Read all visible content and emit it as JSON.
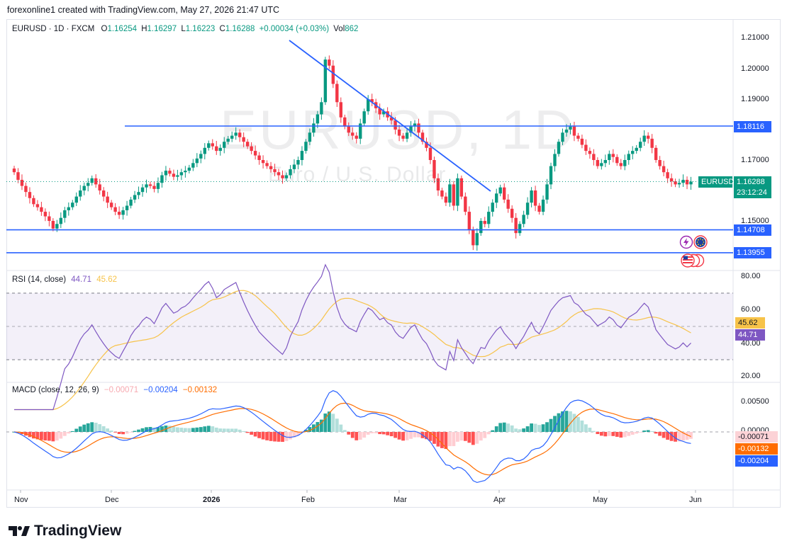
{
  "header": {
    "text": "forexonline1 created with TradingView.com, May 27, 2026 21:47 UTC"
  },
  "legend": {
    "symbol": "EURUSD · 1D · FXCM",
    "o_label": "O",
    "o_value": "1.16254",
    "h_label": "H",
    "h_value": "1.16297",
    "l_label": "L",
    "l_value": "1.16223",
    "c_label": "C",
    "c_value": "1.16288",
    "change": "+0.00034 (+0.03%)",
    "vol_label": "Vol",
    "vol_value": "862"
  },
  "watermark": {
    "title": "EURUSD, 1D",
    "subtitle": "Euro / U.S. Dollar"
  },
  "colors": {
    "up": "#089981",
    "down": "#f23645",
    "line": "#2962ff",
    "rsi": "#7e57c2",
    "rsi_ma": "#f7c34a",
    "macd": "#2962ff",
    "signal": "#ff6d00"
  },
  "price_axis": {
    "ticks": [
      "1.21000",
      "1.20000",
      "1.19000",
      "1.17000",
      "1.15000"
    ],
    "tick_values": [
      1.21,
      1.2,
      1.19,
      1.17,
      1.15
    ],
    "levels": [
      {
        "label": "1.18116",
        "value": 1.18116
      },
      {
        "label": "1.14708",
        "value": 1.14708
      },
      {
        "label": "1.13955",
        "value": 1.13955
      }
    ],
    "current": {
      "symbol": "EURUSD",
      "price": "1.16288",
      "countdown": "23:12:24"
    }
  },
  "rsi": {
    "legend": "RSI (14, close)",
    "value": "44.71",
    "ma_value": "45.62",
    "ticks": [
      "80.00",
      "60.00",
      "40.00",
      "20.00"
    ],
    "tick_values": [
      80,
      60,
      40,
      20
    ]
  },
  "macd": {
    "legend": "MACD (close, 12, 26, 9)",
    "hist_value": "−0.00071",
    "macd_value": "−0.00204",
    "signal_value": "−0.00132",
    "ticks": [
      "0.00500",
      "0.00000"
    ],
    "tick_values": [
      0.005,
      0.0
    ],
    "hist_tag": "-0.00071",
    "signal_tag": "-0.00132",
    "macd_tag": "-0.00204"
  },
  "time_axis": {
    "labels": [
      {
        "text": "Nov",
        "bold": false
      },
      {
        "text": "Dec",
        "bold": false
      },
      {
        "text": "2026",
        "bold": true
      },
      {
        "text": "Feb",
        "bold": false
      },
      {
        "text": "Mar",
        "bold": false
      },
      {
        "text": "Apr",
        "bold": false
      },
      {
        "text": "May",
        "bold": false
      },
      {
        "text": "Jun",
        "bold": false
      }
    ]
  },
  "brand": {
    "name": "TradingView"
  },
  "chart_data": {
    "type": "candlestick",
    "symbol": "EURUSD",
    "timeframe": "1D",
    "ylim": [
      1.135,
      1.212
    ],
    "closes": [
      1.166,
      1.1635,
      1.1615,
      1.1595,
      1.1575,
      1.1555,
      1.1545,
      1.153,
      1.1515,
      1.15,
      1.1475,
      1.149,
      1.151,
      1.1535,
      1.1545,
      1.156,
      1.158,
      1.16,
      1.1615,
      1.1625,
      1.164,
      1.162,
      1.16,
      1.158,
      1.156,
      1.1545,
      1.153,
      1.152,
      1.1535,
      1.155,
      1.157,
      1.1585,
      1.1595,
      1.161,
      1.162,
      1.1615,
      1.1605,
      1.1625,
      1.165,
      1.1665,
      1.1655,
      1.1645,
      1.165,
      1.166,
      1.1665,
      1.1675,
      1.169,
      1.1705,
      1.172,
      1.174,
      1.1755,
      1.1745,
      1.173,
      1.174,
      1.176,
      1.177,
      1.178,
      1.179,
      1.1775,
      1.176,
      1.1745,
      1.173,
      1.1715,
      1.17,
      1.169,
      1.168,
      1.167,
      1.166,
      1.165,
      1.164,
      1.165,
      1.167,
      1.1685,
      1.17,
      1.173,
      1.176,
      1.179,
      1.182,
      1.185,
      1.189,
      1.203,
      1.201,
      1.195,
      1.189,
      1.184,
      1.181,
      1.179,
      1.178,
      1.177,
      1.182,
      1.186,
      1.19,
      1.189,
      1.187,
      1.185,
      1.186,
      1.184,
      1.183,
      1.18,
      1.178,
      1.177,
      1.179,
      1.181,
      1.182,
      1.179,
      1.176,
      1.174,
      1.17,
      1.164,
      1.16,
      1.158,
      1.156,
      1.162,
      1.155,
      1.164,
      1.158,
      1.153,
      1.147,
      1.142,
      1.146,
      1.15,
      1.149,
      1.153,
      1.156,
      1.159,
      1.161,
      1.157,
      1.154,
      1.151,
      1.146,
      1.149,
      1.152,
      1.156,
      1.16,
      1.155,
      1.153,
      1.157,
      1.162,
      1.168,
      1.172,
      1.176,
      1.179,
      1.18,
      1.181,
      1.178,
      1.177,
      1.175,
      1.173,
      1.172,
      1.17,
      1.168,
      1.169,
      1.17,
      1.172,
      1.171,
      1.169,
      1.168,
      1.17,
      1.172,
      1.173,
      1.174,
      1.176,
      1.178,
      1.177,
      1.174,
      1.17,
      1.168,
      1.166,
      1.164,
      1.163,
      1.162,
      1.1625,
      1.1635,
      1.162,
      1.1629
    ],
    "reference_levels": [
      1.18116,
      1.14708,
      1.13955
    ],
    "rsi_latest": 44.71,
    "rsi_ma_latest": 45.62,
    "macd_latest": -0.00204,
    "signal_latest": -0.00132,
    "histogram_latest": -0.00071
  }
}
